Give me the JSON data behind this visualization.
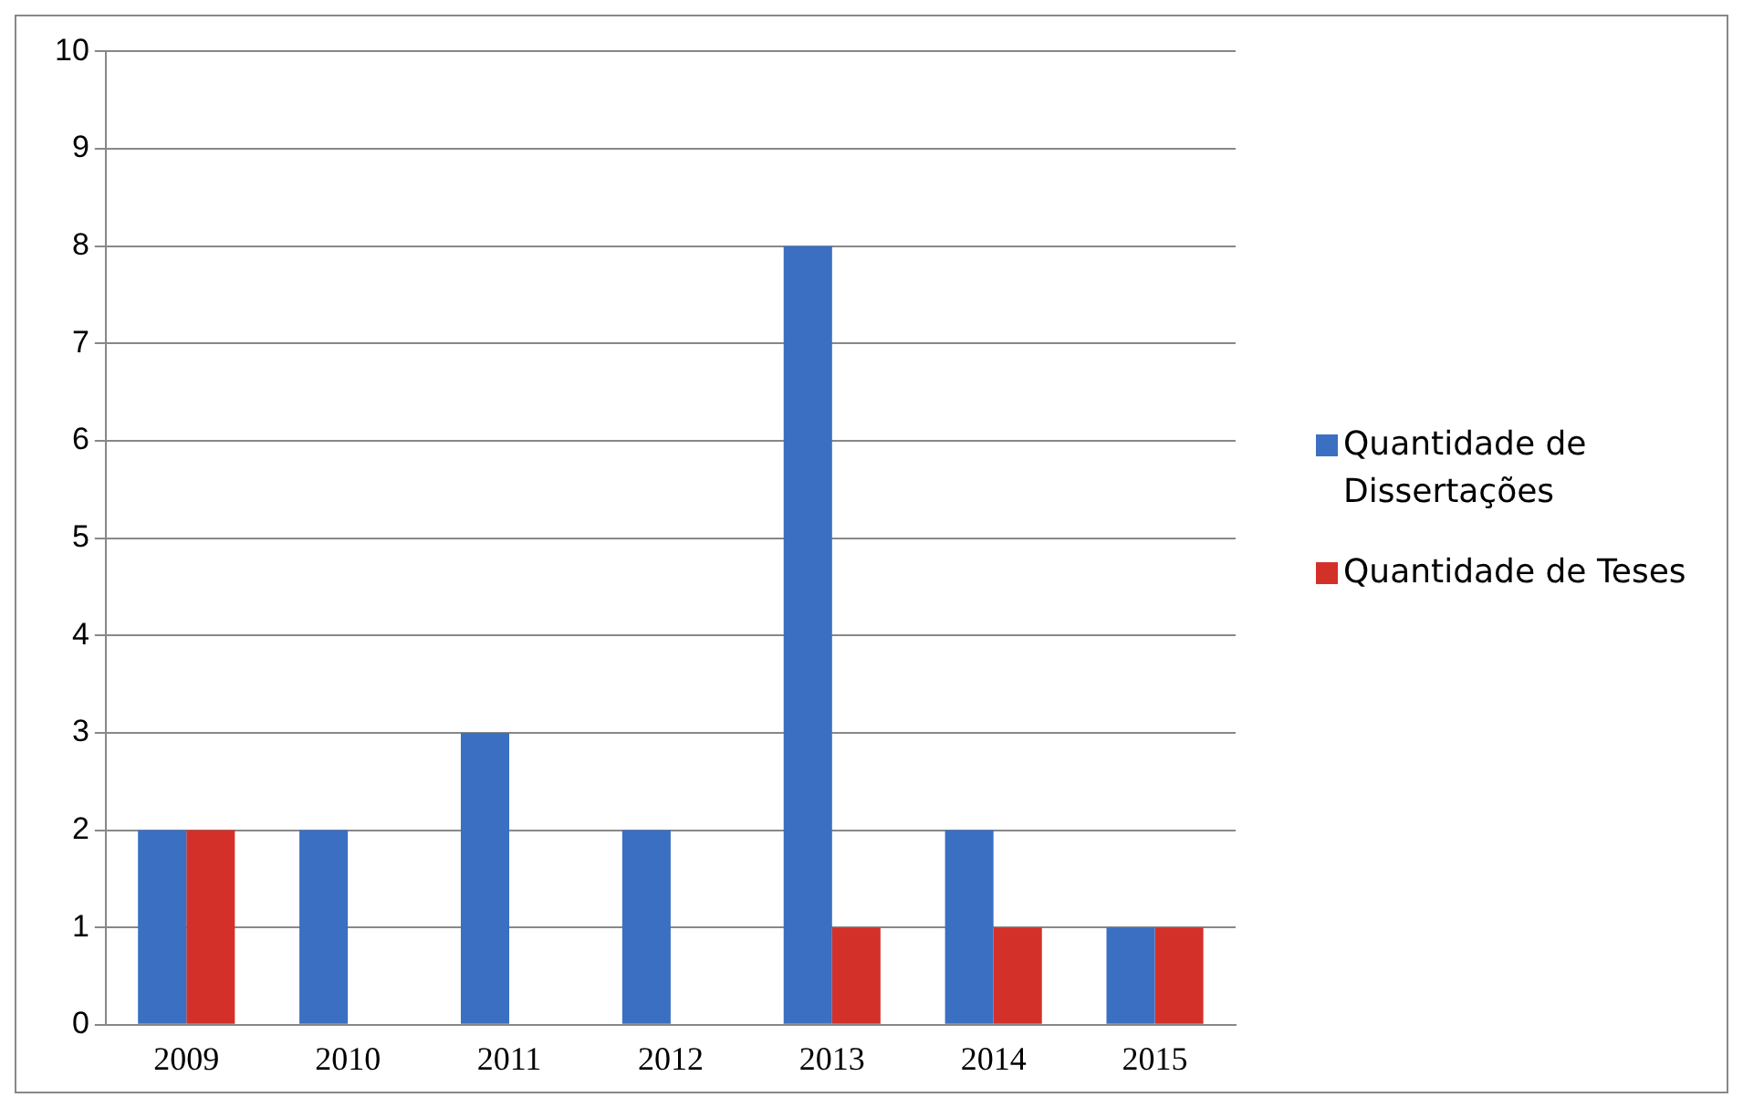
{
  "chart_data": {
    "type": "bar",
    "categories": [
      "2009",
      "2010",
      "2011",
      "2012",
      "2013",
      "2014",
      "2015"
    ],
    "series": [
      {
        "name": "Quantidade de Dissertações",
        "color": "#3b6fc2",
        "values": [
          2,
          2,
          3,
          2,
          8,
          2,
          1
        ]
      },
      {
        "name": "Quantidade de Teses",
        "color": "#d4302a",
        "values": [
          2,
          0,
          0,
          0,
          1,
          1,
          1
        ]
      }
    ],
    "ylim": [
      0,
      10
    ],
    "yticks": [
      0,
      1,
      2,
      3,
      4,
      5,
      6,
      7,
      8,
      9,
      10
    ],
    "grid": "y",
    "legend": "right"
  }
}
